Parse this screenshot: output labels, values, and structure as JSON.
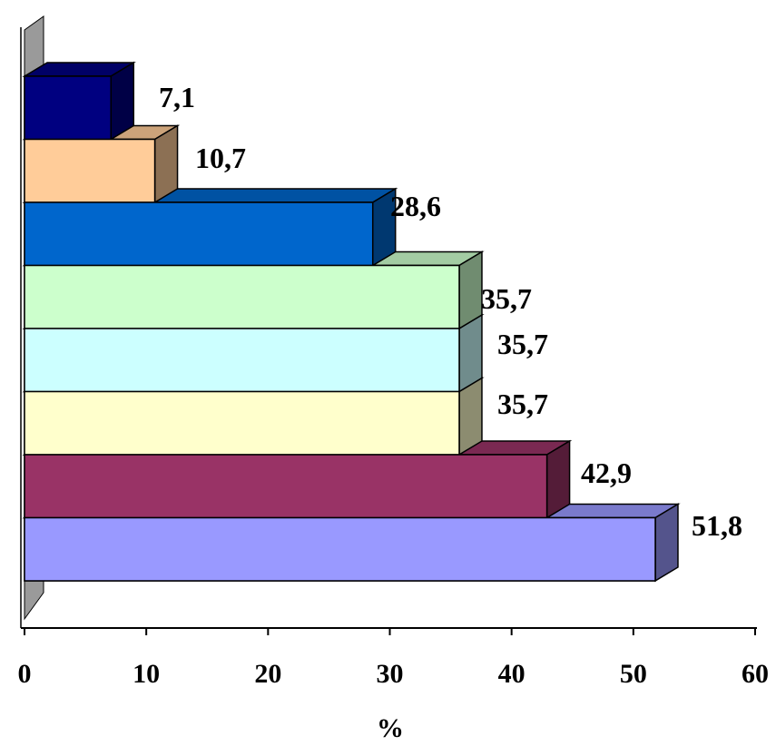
{
  "chart_data": {
    "type": "bar",
    "orientation": "horizontal",
    "three_d": true,
    "xlabel": "%",
    "ylabel": "",
    "xlim": [
      0,
      60
    ],
    "x_ticks": [
      "0",
      "10",
      "20",
      "30",
      "40",
      "50",
      "60"
    ],
    "grid": false,
    "legend": "none",
    "bars": [
      {
        "value": 7.1,
        "label": "7,1",
        "color": "#000080"
      },
      {
        "value": 10.7,
        "label": "10,7",
        "color": "#FFCC99"
      },
      {
        "value": 28.6,
        "label": "28,6",
        "color": "#0066CC"
      },
      {
        "value": 35.7,
        "label": "35,7",
        "color": "#CCFFCC"
      },
      {
        "value": 35.7,
        "label": "35,7",
        "color": "#CCFFFF"
      },
      {
        "value": 35.7,
        "label": "35,7",
        "color": "#FFFFCC"
      },
      {
        "value": 42.9,
        "label": "42,9",
        "color": "#993366"
      },
      {
        "value": 51.8,
        "label": "51,8",
        "color": "#9999FF"
      }
    ]
  }
}
